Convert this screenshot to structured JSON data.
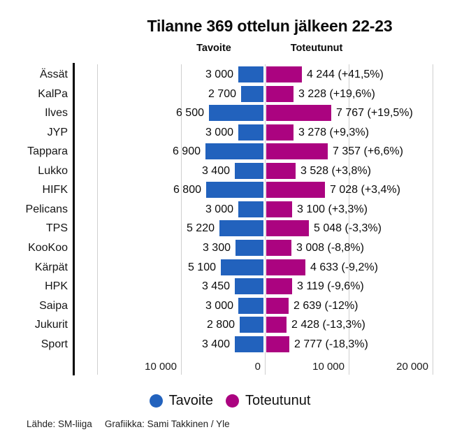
{
  "title": "Tilanne 369 ottelun jälkeen 22-23",
  "column_headers": {
    "left": "Tavoite",
    "right": "Toteutunut"
  },
  "colors": {
    "tavoite": "#2262bd",
    "toteutunut": "#ab0380",
    "gridline": "#cfcfcf",
    "axis": "#000000"
  },
  "legend": [
    {
      "label": "Tavoite",
      "color": "#2262bd"
    },
    {
      "label": "Toteutunut",
      "color": "#ab0380"
    }
  ],
  "footer": {
    "source": "Lähde: SM-liiga",
    "credit": "Grafiikka: Sami Takkinen / Yle"
  },
  "chart_data": {
    "type": "bar",
    "orientation": "horizontal",
    "diverging": true,
    "title": "Tilanne 369 ottelun jälkeen 22-23",
    "categories": [
      "Ässät",
      "KalPa",
      "Ilves",
      "JYP",
      "Tappara",
      "Lukko",
      "HIFK",
      "Pelicans",
      "TPS",
      "KooKoo",
      "Kärpät",
      "HPK",
      "Saipa",
      "Jukurit",
      "Sport"
    ],
    "series": [
      {
        "name": "Tavoite",
        "color": "#2262bd",
        "values": [
          3000,
          2700,
          6500,
          3000,
          6900,
          3400,
          6800,
          3000,
          5220,
          3300,
          5100,
          3450,
          3000,
          2800,
          3400
        ]
      },
      {
        "name": "Toteutunut",
        "color": "#ab0380",
        "values": [
          4244,
          3228,
          7767,
          3278,
          7357,
          3528,
          7028,
          3100,
          5048,
          3008,
          4633,
          3119,
          2639,
          2428,
          2777
        ]
      }
    ],
    "rows": [
      {
        "team": "Ässät",
        "tavoite": 3000,
        "tavoite_label": "3 000",
        "toteutunut": 4244,
        "toteutunut_label": "4 244 (+41,5%)"
      },
      {
        "team": "KalPa",
        "tavoite": 2700,
        "tavoite_label": "2 700",
        "toteutunut": 3228,
        "toteutunut_label": "3 228 (+19,6%)"
      },
      {
        "team": "Ilves",
        "tavoite": 6500,
        "tavoite_label": "6 500",
        "toteutunut": 7767,
        "toteutunut_label": "7 767 (+19,5%)"
      },
      {
        "team": "JYP",
        "tavoite": 3000,
        "tavoite_label": "3 000",
        "toteutunut": 3278,
        "toteutunut_label": "3 278 (+9,3%)"
      },
      {
        "team": "Tappara",
        "tavoite": 6900,
        "tavoite_label": "6 900",
        "toteutunut": 7357,
        "toteutunut_label": "7 357 (+6,6%)"
      },
      {
        "team": "Lukko",
        "tavoite": 3400,
        "tavoite_label": "3 400",
        "toteutunut": 3528,
        "toteutunut_label": "3 528 (+3,8%)"
      },
      {
        "team": "HIFK",
        "tavoite": 6800,
        "tavoite_label": "6 800",
        "toteutunut": 7028,
        "toteutunut_label": "7 028 (+3,4%)"
      },
      {
        "team": "Pelicans",
        "tavoite": 3000,
        "tavoite_label": "3 000",
        "toteutunut": 3100,
        "toteutunut_label": "3 100 (+3,3%)"
      },
      {
        "team": "TPS",
        "tavoite": 5220,
        "tavoite_label": "5 220",
        "toteutunut": 5048,
        "toteutunut_label": "5 048 (-3,3%)"
      },
      {
        "team": "KooKoo",
        "tavoite": 3300,
        "tavoite_label": "3 300",
        "toteutunut": 3008,
        "toteutunut_label": "3 008 (-8,8%)"
      },
      {
        "team": "Kärpät",
        "tavoite": 5100,
        "tavoite_label": "5 100",
        "toteutunut": 4633,
        "toteutunut_label": "4 633 (-9,2%)"
      },
      {
        "team": "HPK",
        "tavoite": 3450,
        "tavoite_label": "3 450",
        "toteutunut": 3119,
        "toteutunut_label": "3 119 (-9,6%)"
      },
      {
        "team": "Saipa",
        "tavoite": 3000,
        "tavoite_label": "3 000",
        "toteutunut": 2639,
        "toteutunut_label": "2 639 (-12%)"
      },
      {
        "team": "Jukurit",
        "tavoite": 2800,
        "tavoite_label": "2 800",
        "toteutunut": 2428,
        "toteutunut_label": "2 428 (-13,3%)"
      },
      {
        "team": "Sport",
        "tavoite": 3400,
        "tavoite_label": "3 400",
        "toteutunut": 2777,
        "toteutunut_label": "2 777 (-18,3%)"
      }
    ],
    "x_axis": {
      "ticks": [
        {
          "value": -20000,
          "label": ""
        },
        {
          "value": -10000,
          "label": "10 000"
        },
        {
          "value": 0,
          "label": "0"
        },
        {
          "value": 10000,
          "label": "10 000"
        },
        {
          "value": 20000,
          "label": "20 000"
        }
      ],
      "range": [
        -20000,
        20000
      ],
      "grid": true
    },
    "legend_position": "bottom"
  }
}
